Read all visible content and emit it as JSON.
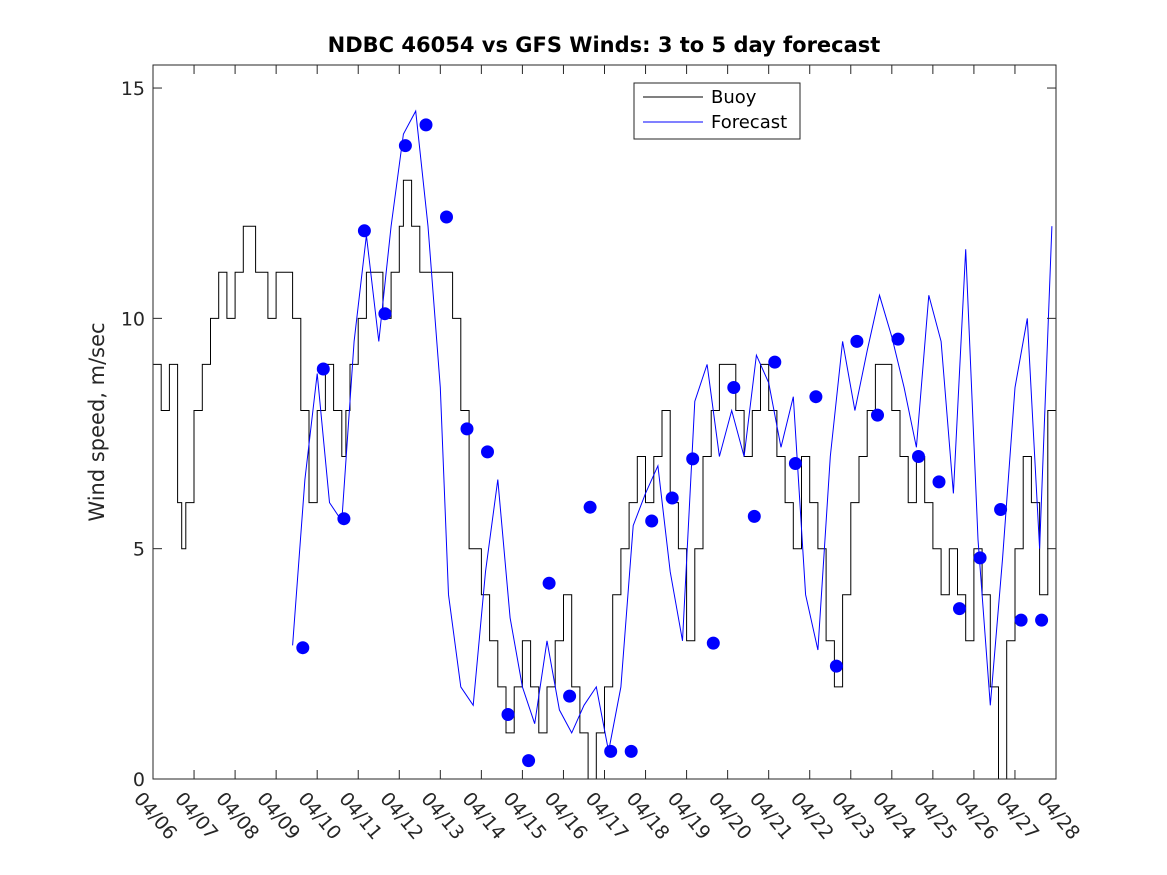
{
  "chart_data": {
    "type": "line",
    "title": "NDBC 46054 vs GFS Winds: 3 to 5 day forecast",
    "xlabel": "",
    "ylabel": "Wind speed, m/sec",
    "xlim": [
      0,
      22
    ],
    "ylim": [
      0,
      15.5
    ],
    "yticks": [
      0,
      5,
      10,
      15
    ],
    "x_tick_labels": [
      "04/06",
      "04/07",
      "04/08",
      "04/09",
      "04/10",
      "04/11",
      "04/12",
      "04/13",
      "04/14",
      "04/15",
      "04/16",
      "04/17",
      "04/18",
      "04/19",
      "04/20",
      "04/21",
      "04/22",
      "04/23",
      "04/24",
      "04/25",
      "04/26",
      "04/27",
      "04/28"
    ],
    "x_units": "days since 04/06",
    "grid": false,
    "legend": {
      "placement": "top-center",
      "entries": [
        "Buoy",
        "Forecast"
      ]
    },
    "colors": {
      "buoy": "#000000",
      "forecast": "#0000ff",
      "points": "#0000ff"
    },
    "series": [
      {
        "name": "Buoy",
        "style": "step",
        "color": "#000000",
        "x": [
          0.0,
          0.2,
          0.4,
          0.6,
          0.7,
          0.8,
          1.0,
          1.2,
          1.4,
          1.6,
          1.8,
          2.0,
          2.2,
          2.5,
          2.8,
          3.0,
          3.2,
          3.4,
          3.6,
          3.8,
          4.0,
          4.2,
          4.4,
          4.6,
          4.7,
          4.8,
          5.0,
          5.2,
          5.4,
          5.6,
          5.8,
          6.0,
          6.1,
          6.3,
          6.5,
          6.7,
          7.0,
          7.3,
          7.5,
          7.7,
          8.0,
          8.2,
          8.4,
          8.6,
          8.8,
          9.0,
          9.2,
          9.4,
          9.6,
          9.8,
          10.0,
          10.2,
          10.4,
          10.6,
          10.8,
          11.0,
          11.2,
          11.4,
          11.6,
          11.8,
          12.0,
          12.2,
          12.4,
          12.6,
          12.8,
          13.0,
          13.2,
          13.4,
          13.6,
          13.8,
          14.0,
          14.2,
          14.4,
          14.6,
          14.8,
          15.0,
          15.2,
          15.4,
          15.6,
          15.8,
          16.0,
          16.2,
          16.4,
          16.6,
          16.8,
          17.0,
          17.2,
          17.4,
          17.6,
          17.8,
          18.0,
          18.2,
          18.4,
          18.6,
          18.8,
          19.0,
          19.2,
          19.4,
          19.6,
          19.8,
          20.0,
          20.2,
          20.4,
          20.6,
          20.8,
          21.0,
          21.2,
          21.4,
          21.6,
          21.8,
          22.0
        ],
        "y": [
          9,
          8,
          9,
          6,
          5,
          6,
          8,
          9,
          10,
          11,
          10,
          11,
          12,
          11,
          10,
          11,
          11,
          10,
          8,
          6,
          8,
          9,
          8,
          7,
          8,
          9,
          10,
          11,
          11,
          10,
          11,
          12,
          13,
          12,
          11,
          11,
          11,
          10,
          8,
          5,
          4,
          3,
          2,
          1,
          2,
          3,
          2,
          1,
          2,
          3,
          4,
          2,
          1,
          0,
          1,
          2,
          4,
          5,
          6,
          7,
          6,
          7,
          8,
          6,
          5,
          3,
          5,
          7,
          8,
          9,
          9,
          8,
          7,
          8,
          9,
          8,
          7,
          6,
          5,
          7,
          6,
          5,
          3,
          2,
          4,
          6,
          7,
          8,
          9,
          9,
          8,
          7,
          6,
          7,
          6,
          5,
          4,
          5,
          4,
          3,
          5,
          4,
          2,
          0,
          3,
          5,
          7,
          6,
          4,
          8,
          10
        ]
      },
      {
        "name": "Forecast",
        "style": "line",
        "color": "#0000ff",
        "x": [
          3.4,
          3.7,
          4.0,
          4.3,
          4.6,
          4.9,
          5.2,
          5.5,
          5.8,
          6.1,
          6.4,
          6.7,
          7.0,
          7.2,
          7.5,
          7.8,
          8.1,
          8.4,
          8.7,
          9.0,
          9.3,
          9.6,
          9.9,
          10.2,
          10.5,
          10.8,
          11.1,
          11.4,
          11.7,
          12.0,
          12.3,
          12.6,
          12.9,
          13.2,
          13.5,
          13.8,
          14.1,
          14.4,
          14.7,
          15.0,
          15.3,
          15.6,
          15.9,
          16.2,
          16.5,
          16.8,
          17.1,
          17.4,
          17.7,
          18.0,
          18.3,
          18.6,
          18.9,
          19.2,
          19.5,
          19.8,
          20.1,
          20.4,
          20.7,
          21.0,
          21.3,
          21.6,
          21.9
        ],
        "y": [
          2.9,
          6.5,
          8.8,
          6.0,
          5.6,
          9.5,
          11.8,
          9.5,
          12.0,
          14.0,
          14.5,
          12.0,
          8.5,
          4.0,
          2.0,
          1.6,
          4.5,
          6.5,
          3.5,
          2.0,
          1.2,
          3.0,
          1.5,
          1.0,
          1.6,
          2.0,
          0.6,
          2.0,
          5.5,
          6.2,
          6.8,
          4.5,
          3.0,
          8.2,
          9.0,
          7.0,
          8.0,
          7.0,
          9.2,
          8.6,
          7.2,
          8.3,
          4.0,
          2.8,
          7.0,
          9.5,
          8.0,
          9.3,
          10.5,
          9.6,
          8.5,
          7.2,
          10.5,
          9.5,
          6.2,
          11.5,
          5.2,
          1.6,
          4.8,
          8.5,
          10.0,
          5.0,
          12.0
        ]
      }
    ],
    "points": {
      "name": "Forecast points",
      "color": "#0000ff",
      "x": [
        3.65,
        4.15,
        4.65,
        5.15,
        5.65,
        6.15,
        6.65,
        7.15,
        7.65,
        8.15,
        8.65,
        9.15,
        9.65,
        10.15,
        10.65,
        11.15,
        11.65,
        12.15,
        12.65,
        13.15,
        13.65,
        14.15,
        14.65,
        15.15,
        15.65,
        16.15,
        16.65,
        17.15,
        17.65,
        18.15,
        18.65,
        19.15,
        19.65,
        20.15,
        20.65,
        21.15,
        21.65
      ],
      "y": [
        2.85,
        8.9,
        5.65,
        11.9,
        10.1,
        13.75,
        14.2,
        12.2,
        7.6,
        7.1,
        1.4,
        0.4,
        4.25,
        1.8,
        5.9,
        0.6,
        0.6,
        5.6,
        6.1,
        6.95,
        2.95,
        8.5,
        5.7,
        9.05,
        6.85,
        8.3,
        2.45,
        9.5,
        7.9,
        9.55,
        7.0,
        6.45,
        3.7,
        4.8,
        5.85,
        3.45,
        3.45
      ]
    }
  }
}
